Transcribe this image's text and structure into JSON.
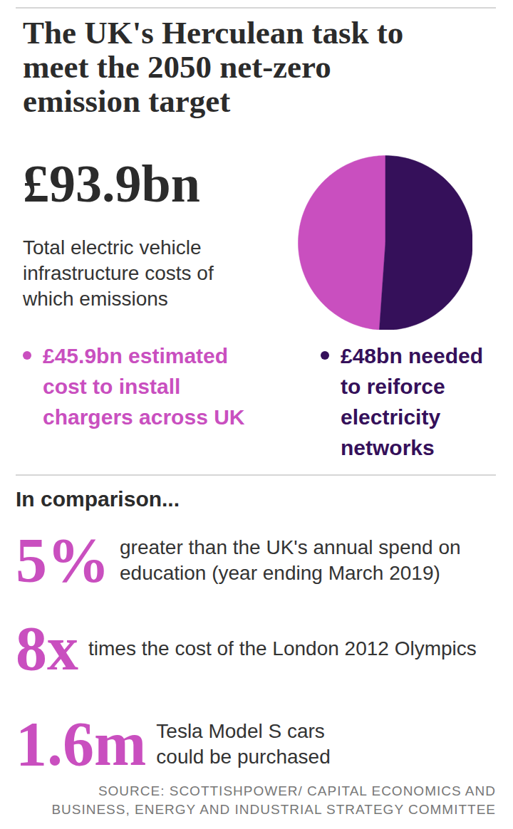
{
  "chart_data": {
    "type": "pie",
    "title": "The UK's Herculean task to meet the 2050 net-zero emission target",
    "categories": [
      "£45.9bn estimated cost to install chargers across UK",
      "£48bn needed to reiforce electricity networks"
    ],
    "values": [
      45.9,
      48
    ],
    "colors": [
      "#c94fbf",
      "#35105a"
    ],
    "legend": "bottom"
  },
  "headline": {
    "value": "£93.9bn",
    "text": "Total electric vehicle infrastructure costs of which emissions"
  },
  "comparison": {
    "heading": "In comparison...",
    "items": [
      {
        "value": "5%",
        "text": "greater than the UK's annual spend on education (year ending March 2019)"
      },
      {
        "value": "8x",
        "text": "times the cost of the London 2012 Olympics"
      },
      {
        "value": "1.6m",
        "text": "Tesla Model S cars could be purchased"
      }
    ]
  },
  "source": "SOURCE: SCOTTISHPOWER/ CAPITAL ECONOMICS AND BUSINESS, ENERGY AND INDUSTRIAL STRATEGY COMMITTEE"
}
